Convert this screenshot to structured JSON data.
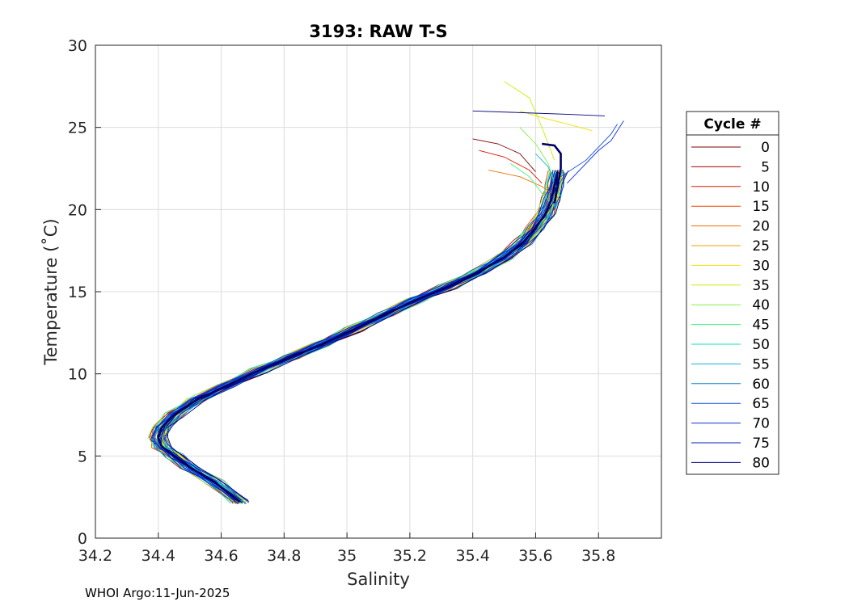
{
  "chart_data": {
    "type": "line",
    "title": "3193: RAW T-S",
    "xlabel": "Salinity",
    "ylabel": "Temperature (˚C)",
    "xlim": [
      34.2,
      36.0
    ],
    "ylim": [
      0,
      30
    ],
    "xticks": [
      "34.2",
      "34.4",
      "34.6",
      "34.8",
      "35",
      "35.2",
      "35.4",
      "35.6",
      "35.8"
    ],
    "xtick_values": [
      34.2,
      34.4,
      34.6,
      34.8,
      35.0,
      35.2,
      35.4,
      35.6,
      35.8
    ],
    "yticks": [
      "0",
      "5",
      "10",
      "15",
      "20",
      "25",
      "30"
    ],
    "ytick_values": [
      0,
      5,
      10,
      15,
      20,
      25,
      30
    ],
    "grid": true,
    "legend": {
      "title": "Cycle #",
      "placement": "right",
      "entries": [
        "0",
        "5",
        "10",
        "15",
        "20",
        "25",
        "30",
        "35",
        "40",
        "45",
        "50",
        "55",
        "60",
        "65",
        "70",
        "75",
        "80"
      ],
      "colors": [
        "#800000",
        "#B00000",
        "#E01800",
        "#F04000",
        "#F07000",
        "#F0A000",
        "#F0E000",
        "#C8F000",
        "#80F040",
        "#40F080",
        "#10E0C0",
        "#10B0E0",
        "#1080D0",
        "#1050E0",
        "#1030E0",
        "#0020C0",
        "#000080"
      ]
    },
    "base_profile": {
      "salinity": [
        34.66,
        34.58,
        34.5,
        34.45,
        34.41,
        34.4,
        34.41,
        34.45,
        34.52,
        34.62,
        34.72,
        34.82,
        34.92,
        35.02,
        35.12,
        35.22,
        35.32,
        35.42,
        35.5,
        35.56,
        35.6,
        35.63,
        35.65,
        35.66,
        35.67
      ],
      "temperature": [
        2.2,
        3.4,
        4.3,
        5.0,
        5.6,
        6.1,
        6.7,
        7.5,
        8.4,
        9.3,
        10.2,
        11.0,
        11.8,
        12.7,
        13.6,
        14.5,
        15.3,
        16.2,
        17.1,
        18.0,
        18.9,
        19.7,
        20.6,
        21.5,
        22.3
      ]
    },
    "surface_spread": [
      {
        "cycle": "0",
        "salinity": [
          35.4,
          35.48,
          35.55,
          35.6
        ],
        "temperature": [
          24.3,
          24.0,
          23.4,
          22.3
        ]
      },
      {
        "cycle": "10",
        "salinity": [
          35.42,
          35.5,
          35.58,
          35.62
        ],
        "temperature": [
          23.6,
          23.2,
          22.4,
          21.6
        ]
      },
      {
        "cycle": "20",
        "salinity": [
          35.45,
          35.55,
          35.62,
          35.68
        ],
        "temperature": [
          22.4,
          22.0,
          21.4,
          20.6
        ]
      },
      {
        "cycle": "30",
        "salinity": [
          35.55,
          35.62,
          35.7,
          35.78
        ],
        "temperature": [
          26.0,
          25.6,
          25.2,
          24.8
        ]
      },
      {
        "cycle": "35",
        "salinity": [
          35.5,
          35.58,
          35.62,
          35.66
        ],
        "temperature": [
          27.8,
          26.8,
          25.0,
          23.0
        ]
      },
      {
        "cycle": "40",
        "salinity": [
          35.55,
          35.6,
          35.64,
          35.66
        ],
        "temperature": [
          25.0,
          24.0,
          22.8,
          21.6
        ]
      },
      {
        "cycle": "45",
        "salinity": [
          35.52,
          35.58,
          35.62,
          35.66
        ],
        "temperature": [
          22.8,
          22.0,
          21.0,
          20.2
        ]
      },
      {
        "cycle": "55",
        "salinity": [
          35.6,
          35.64,
          35.66,
          35.68
        ],
        "temperature": [
          23.4,
          22.6,
          21.6,
          20.8
        ]
      },
      {
        "cycle": "65",
        "salinity": [
          35.68,
          35.76,
          35.84,
          35.86
        ],
        "temperature": [
          22.0,
          23.0,
          24.6,
          25.2
        ]
      },
      {
        "cycle": "70",
        "salinity": [
          35.7,
          35.8,
          35.84,
          35.88
        ],
        "temperature": [
          21.6,
          23.6,
          24.2,
          25.4
        ]
      },
      {
        "cycle": "80",
        "salinity": [
          35.4,
          35.55,
          35.7,
          35.82
        ],
        "temperature": [
          26.0,
          25.9,
          25.8,
          25.7
        ]
      }
    ],
    "highlight_profile": {
      "cycle": "80",
      "salinity": [
        35.62,
        35.66,
        35.68,
        35.68,
        35.67,
        35.66
      ],
      "temperature": [
        24.0,
        23.9,
        23.4,
        22.5,
        21.4,
        20.4
      ]
    }
  },
  "footer": {
    "text": "WHOI Argo:11-Jun-2025"
  }
}
